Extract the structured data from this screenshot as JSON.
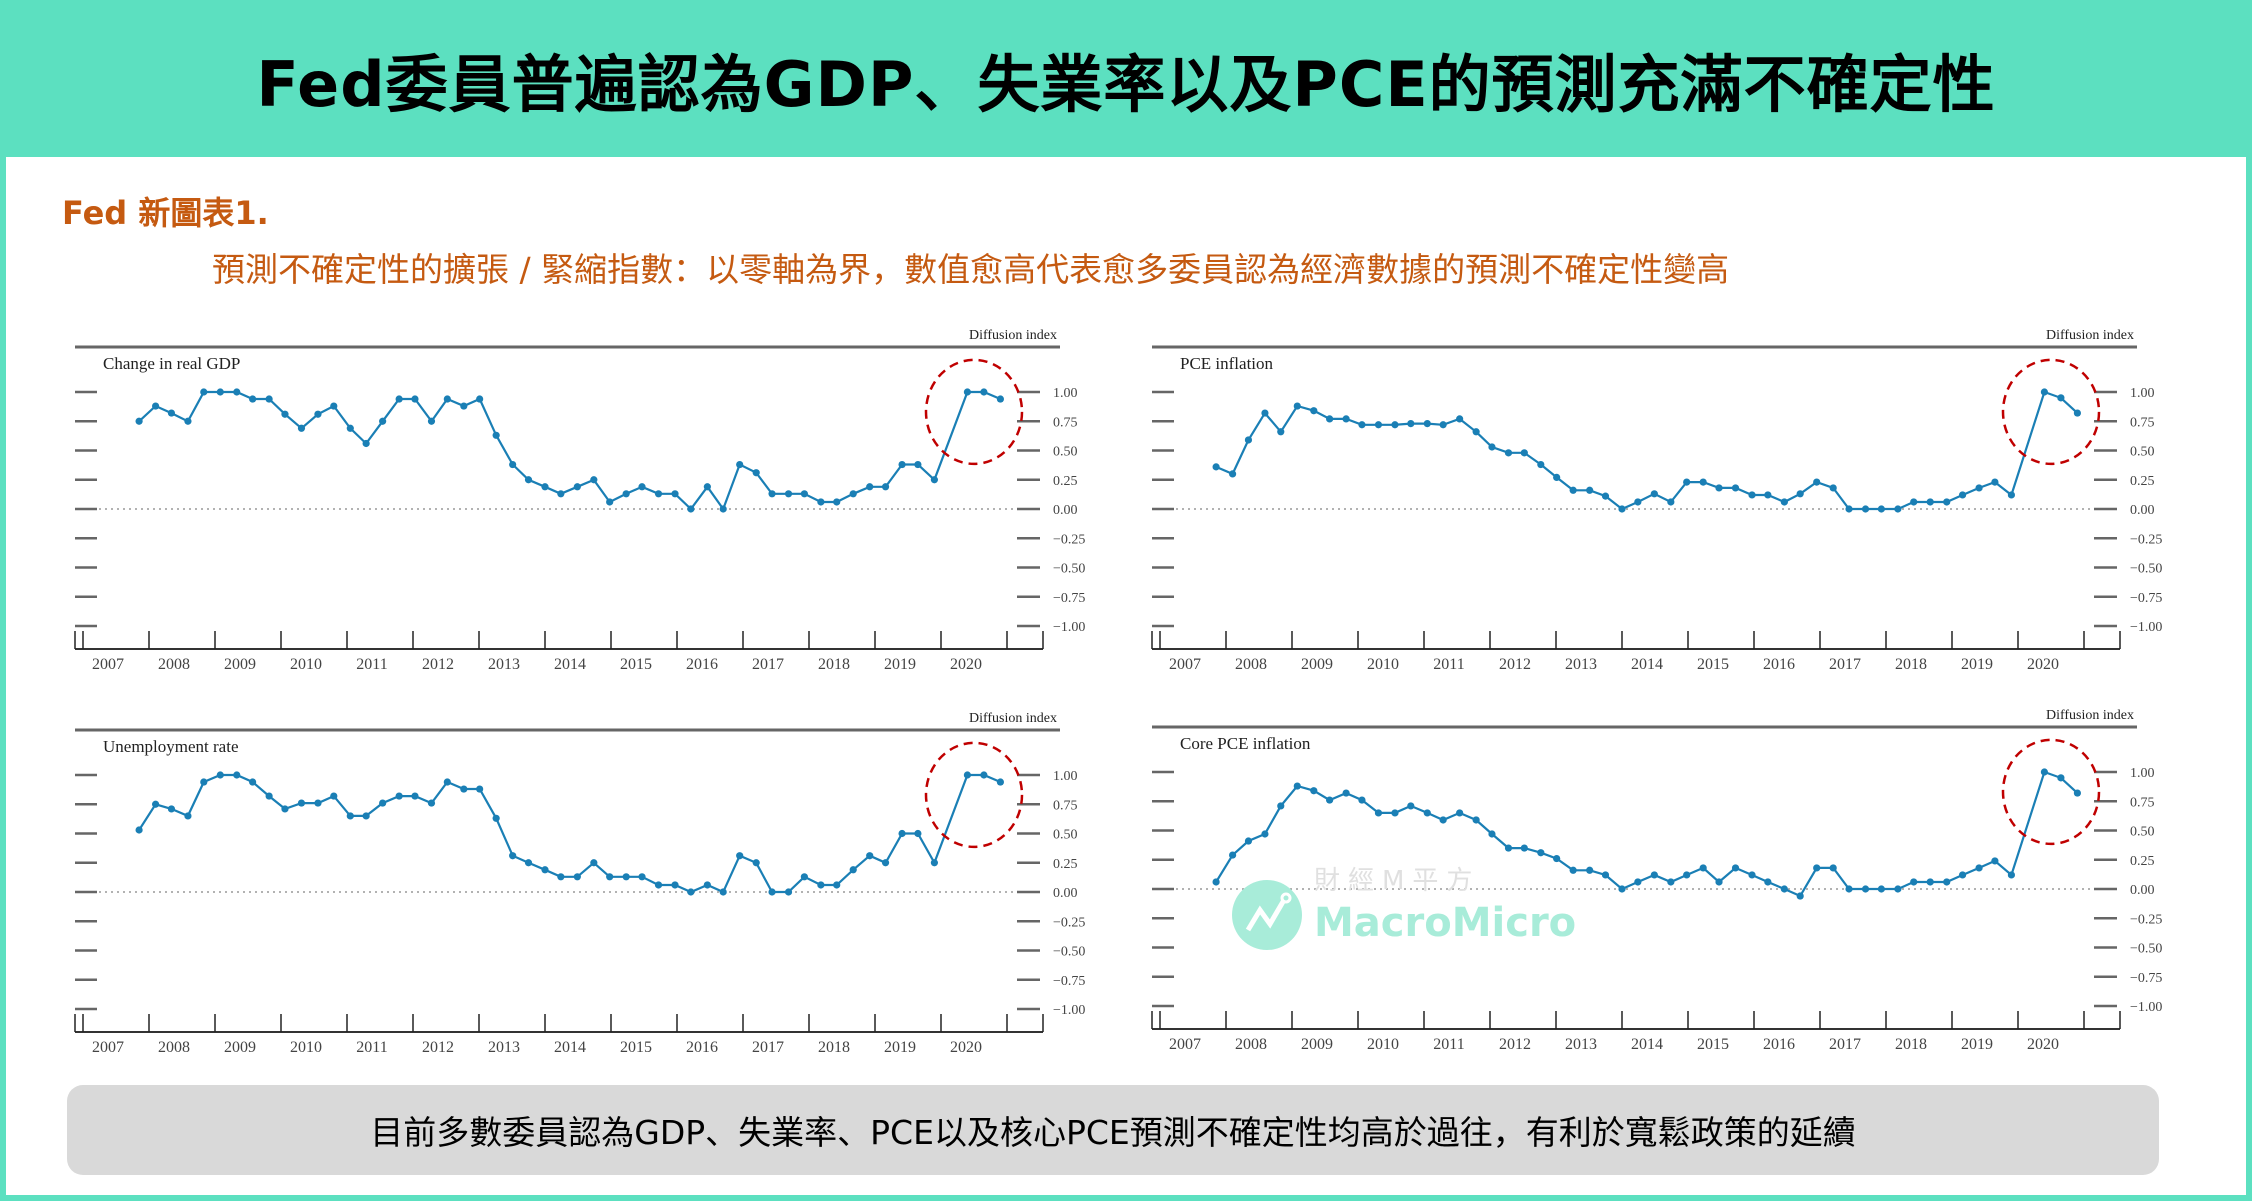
{
  "header": {
    "title": "Fed委員普遍認為GDP、失業率以及PCE的預測充滿不確定性"
  },
  "subtitle": {
    "label": "Fed 新圖表1.",
    "description": "預測不確定性的擴張 / 緊縮指數：以零軸為界，數值愈高代表愈多委員認為經濟數據的預測不確定性變高"
  },
  "caption": "目前多數委員認為GDP、失業率、PCE以及核心PCE預測不確定性均高於過往，有利於寬鬆政策的延續",
  "watermark": {
    "cn": "財經M平方",
    "en": "MacroMicro"
  },
  "colors": {
    "header_bg": "#5ce0c0",
    "accent_text": "#c55a11",
    "line": "#1a7fb5",
    "highlight_circle": "#c00000",
    "caption_bg": "#d9d9d9"
  },
  "chart_data": [
    {
      "type": "line",
      "title": "Change in real GDP",
      "ylabel": "Diffusion index",
      "ylim": [
        -1.0,
        1.0
      ],
      "y_tick_labels": [
        "1.00",
        "0.75",
        "0.50",
        "0.25",
        "0.00",
        "−0.25",
        "−0.50",
        "−0.75",
        "−1.00"
      ],
      "x_tick_labels": [
        "2007",
        "2008",
        "2009",
        "2010",
        "2011",
        "2012",
        "2013",
        "2014",
        "2015",
        "2016",
        "2017",
        "2018",
        "2019",
        "2020"
      ],
      "zero_line": "dotted",
      "highlight": "2020 (red dashed circle)",
      "x": [
        2007.85,
        2008.1,
        2008.34,
        2008.59,
        2008.83,
        2009.08,
        2009.33,
        2009.57,
        2009.82,
        2010.06,
        2010.31,
        2010.56,
        2010.8,
        2011.05,
        2011.29,
        2011.54,
        2011.79,
        2012.03,
        2012.28,
        2012.52,
        2012.77,
        2013.01,
        2013.26,
        2013.51,
        2013.75,
        2014.0,
        2014.24,
        2014.49,
        2014.74,
        2014.98,
        2015.23,
        2015.47,
        2015.72,
        2015.97,
        2016.21,
        2016.46,
        2016.7,
        2016.95,
        2017.2,
        2017.44,
        2017.69,
        2017.93,
        2018.18,
        2018.42,
        2018.67,
        2018.92,
        2019.16,
        2019.41,
        2019.65,
        2019.9,
        2020.4,
        2020.65,
        2020.9
      ],
      "values": [
        0.75,
        0.88,
        0.82,
        0.75,
        1.0,
        1.0,
        1.0,
        0.94,
        0.94,
        0.81,
        0.69,
        0.81,
        0.88,
        0.69,
        0.56,
        0.75,
        0.94,
        0.94,
        0.75,
        0.94,
        0.88,
        0.94,
        0.63,
        0.38,
        0.25,
        0.19,
        0.13,
        0.19,
        0.25,
        0.06,
        0.13,
        0.19,
        0.13,
        0.13,
        0.0,
        0.19,
        0.0,
        0.38,
        0.31,
        0.13,
        0.13,
        0.13,
        0.06,
        0.06,
        0.13,
        0.19,
        0.19,
        0.38,
        0.38,
        0.25,
        1.0,
        1.0,
        0.94
      ]
    },
    {
      "type": "line",
      "title": "PCE inflation",
      "ylabel": "Diffusion index",
      "ylim": [
        -1.0,
        1.0
      ],
      "y_tick_labels": [
        "1.00",
        "0.75",
        "0.50",
        "0.25",
        "0.00",
        "−0.25",
        "−0.50",
        "−0.75",
        "−1.00"
      ],
      "x_tick_labels": [
        "2007",
        "2008",
        "2009",
        "2010",
        "2011",
        "2012",
        "2013",
        "2014",
        "2015",
        "2016",
        "2017",
        "2018",
        "2019",
        "2020"
      ],
      "zero_line": "dotted",
      "highlight": "2020 (red dashed circle)",
      "x": [
        2007.85,
        2008.1,
        2008.34,
        2008.59,
        2008.83,
        2009.08,
        2009.33,
        2009.57,
        2009.82,
        2010.06,
        2010.31,
        2010.56,
        2010.8,
        2011.05,
        2011.29,
        2011.54,
        2011.79,
        2012.03,
        2012.28,
        2012.52,
        2012.77,
        2013.01,
        2013.26,
        2013.51,
        2013.75,
        2014.0,
        2014.24,
        2014.49,
        2014.74,
        2014.98,
        2015.23,
        2015.47,
        2015.72,
        2015.97,
        2016.21,
        2016.46,
        2016.7,
        2016.95,
        2017.2,
        2017.44,
        2017.69,
        2017.93,
        2018.18,
        2018.42,
        2018.67,
        2018.92,
        2019.16,
        2019.41,
        2019.65,
        2019.9,
        2020.4,
        2020.65,
        2020.9
      ],
      "values": [
        0.36,
        0.3,
        0.59,
        0.82,
        0.66,
        0.88,
        0.84,
        0.77,
        0.77,
        0.72,
        0.72,
        0.72,
        0.73,
        0.73,
        0.72,
        0.77,
        0.66,
        0.53,
        0.48,
        0.48,
        0.38,
        0.27,
        0.16,
        0.16,
        0.11,
        0.0,
        0.06,
        0.13,
        0.06,
        0.23,
        0.23,
        0.18,
        0.18,
        0.12,
        0.12,
        0.06,
        0.13,
        0.23,
        0.18,
        0.0,
        0.0,
        0.0,
        0.0,
        0.06,
        0.06,
        0.06,
        0.12,
        0.18,
        0.23,
        0.12,
        1.0,
        0.95,
        0.82
      ]
    },
    {
      "type": "line",
      "title": "Unemployment rate",
      "ylabel": "Diffusion index",
      "ylim": [
        -1.0,
        1.0
      ],
      "y_tick_labels": [
        "1.00",
        "0.75",
        "0.50",
        "0.25",
        "0.00",
        "−0.25",
        "−0.50",
        "−0.75",
        "−1.00"
      ],
      "x_tick_labels": [
        "2007",
        "2008",
        "2009",
        "2010",
        "2011",
        "2012",
        "2013",
        "2014",
        "2015",
        "2016",
        "2017",
        "2018",
        "2019",
        "2020"
      ],
      "zero_line": "dotted",
      "highlight": "2020 (red dashed circle)",
      "x": [
        2007.85,
        2008.1,
        2008.34,
        2008.59,
        2008.83,
        2009.08,
        2009.33,
        2009.57,
        2009.82,
        2010.06,
        2010.31,
        2010.56,
        2010.8,
        2011.05,
        2011.29,
        2011.54,
        2011.79,
        2012.03,
        2012.28,
        2012.52,
        2012.77,
        2013.01,
        2013.26,
        2013.51,
        2013.75,
        2014.0,
        2014.24,
        2014.49,
        2014.74,
        2014.98,
        2015.23,
        2015.47,
        2015.72,
        2015.97,
        2016.21,
        2016.46,
        2016.7,
        2016.95,
        2017.2,
        2017.44,
        2017.69,
        2017.93,
        2018.18,
        2018.42,
        2018.67,
        2018.92,
        2019.16,
        2019.41,
        2019.65,
        2019.9,
        2020.4,
        2020.65,
        2020.9
      ],
      "values": [
        0.53,
        0.75,
        0.71,
        0.65,
        0.94,
        1.0,
        1.0,
        0.94,
        0.82,
        0.71,
        0.76,
        0.76,
        0.82,
        0.65,
        0.65,
        0.76,
        0.82,
        0.82,
        0.76,
        0.94,
        0.88,
        0.88,
        0.63,
        0.31,
        0.25,
        0.19,
        0.13,
        0.13,
        0.25,
        0.13,
        0.13,
        0.13,
        0.06,
        0.06,
        0.0,
        0.06,
        0.0,
        0.31,
        0.25,
        0.0,
        0.0,
        0.13,
        0.06,
        0.06,
        0.19,
        0.31,
        0.25,
        0.5,
        0.5,
        0.25,
        1.0,
        1.0,
        0.94
      ]
    },
    {
      "type": "line",
      "title": "Core PCE inflation",
      "ylabel": "Diffusion index",
      "ylim": [
        -1.0,
        1.0
      ],
      "y_tick_labels": [
        "1.00",
        "0.75",
        "0.50",
        "0.25",
        "0.00",
        "−0.25",
        "−0.50",
        "−0.75",
        "−1.00"
      ],
      "x_tick_labels": [
        "2007",
        "2008",
        "2009",
        "2010",
        "2011",
        "2012",
        "2013",
        "2014",
        "2015",
        "2016",
        "2017",
        "2018",
        "2019",
        "2020"
      ],
      "zero_line": "dotted",
      "highlight": "2020 (red dashed circle)",
      "x": [
        2007.85,
        2008.1,
        2008.34,
        2008.59,
        2008.83,
        2009.08,
        2009.33,
        2009.57,
        2009.82,
        2010.06,
        2010.31,
        2010.56,
        2010.8,
        2011.05,
        2011.29,
        2011.54,
        2011.79,
        2012.03,
        2012.28,
        2012.52,
        2012.77,
        2013.01,
        2013.26,
        2013.51,
        2013.75,
        2014.0,
        2014.24,
        2014.49,
        2014.74,
        2014.98,
        2015.23,
        2015.47,
        2015.72,
        2015.97,
        2016.21,
        2016.46,
        2016.7,
        2016.95,
        2017.2,
        2017.44,
        2017.69,
        2017.93,
        2018.18,
        2018.42,
        2018.67,
        2018.92,
        2019.16,
        2019.41,
        2019.65,
        2019.9,
        2020.4,
        2020.65,
        2020.9
      ],
      "values": [
        0.06,
        0.29,
        0.41,
        0.47,
        0.71,
        0.88,
        0.84,
        0.76,
        0.82,
        0.76,
        0.65,
        0.65,
        0.71,
        0.65,
        0.59,
        0.65,
        0.59,
        0.47,
        0.35,
        0.35,
        0.31,
        0.26,
        0.16,
        0.16,
        0.12,
        0.0,
        0.06,
        0.12,
        0.06,
        0.12,
        0.18,
        0.06,
        0.18,
        0.12,
        0.06,
        0.0,
        -0.06,
        0.18,
        0.18,
        0.0,
        0.0,
        0.0,
        0.0,
        0.06,
        0.06,
        0.06,
        0.12,
        0.18,
        0.24,
        0.12,
        1.0,
        0.95,
        0.82
      ]
    }
  ]
}
